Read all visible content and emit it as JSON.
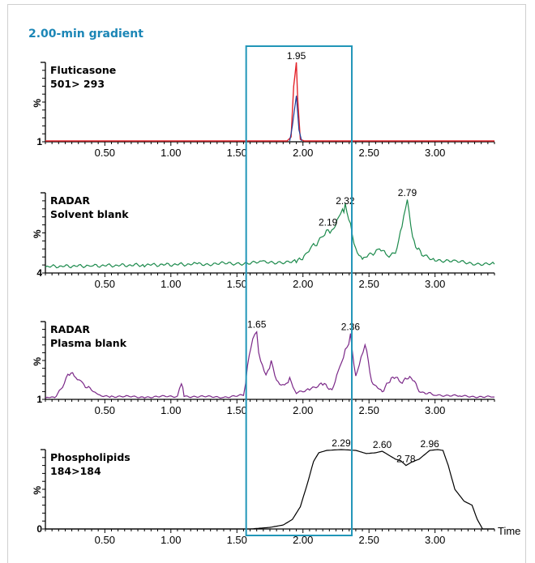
{
  "figure_title": "2.00-min gradient",
  "x_axis_label": "Time",
  "highlight_window": [
    1.57,
    2.37
  ],
  "highlight_color": "#2196b8",
  "chart_data": [
    {
      "type": "line",
      "label_lines": [
        "Fluticasone",
        "501> 293"
      ],
      "y_axis_label": "%",
      "y_min_label": "1",
      "xlim": [
        0.05,
        3.45
      ],
      "ylim": [
        0,
        100
      ],
      "x_ticks": [
        "0.50",
        "1.00",
        "1.50",
        "2.00",
        "2.50",
        "3.00"
      ],
      "colors": [
        "#e3242b",
        "#1f3f9a"
      ],
      "peaks": [
        {
          "x": 1.95,
          "label": "1.95"
        }
      ],
      "series": [
        {
          "color": "#e3242b",
          "points": [
            [
              0.05,
              1
            ],
            [
              1.88,
              1
            ],
            [
              1.91,
              6
            ],
            [
              1.93,
              70
            ],
            [
              1.95,
              100
            ],
            [
              1.96,
              55
            ],
            [
              1.98,
              3
            ],
            [
              2.01,
              1
            ],
            [
              3.45,
              1
            ]
          ]
        },
        {
          "color": "#1f3f9a",
          "points": [
            [
              1.9,
              1
            ],
            [
              1.92,
              20
            ],
            [
              1.95,
              58
            ],
            [
              1.97,
              15
            ],
            [
              1.99,
              1
            ]
          ]
        }
      ]
    },
    {
      "type": "line",
      "label_lines": [
        "RADAR",
        "Solvent blank"
      ],
      "y_axis_label": "%",
      "y_min_label": "4",
      "xlim": [
        0.05,
        3.45
      ],
      "ylim": [
        0,
        100
      ],
      "x_ticks": [
        "0.50",
        "1.00",
        "1.50",
        "2.00",
        "2.50",
        "3.00"
      ],
      "colors": [
        "#1c8a4c"
      ],
      "peaks": [
        {
          "x": 2.19,
          "label": "2.19"
        },
        {
          "x": 2.32,
          "label": "2.32"
        },
        {
          "x": 2.79,
          "label": "2.79"
        }
      ],
      "series": [
        {
          "color": "#1c8a4c",
          "points": [
            [
              0.05,
              8
            ],
            [
              0.4,
              9
            ],
            [
              0.8,
              10
            ],
            [
              1.2,
              11
            ],
            [
              1.5,
              12
            ],
            [
              1.7,
              13
            ],
            [
              1.85,
              14
            ],
            [
              1.95,
              14
            ],
            [
              2.02,
              22
            ],
            [
              2.08,
              35
            ],
            [
              2.14,
              42
            ],
            [
              2.19,
              55
            ],
            [
              2.22,
              50
            ],
            [
              2.27,
              70
            ],
            [
              2.3,
              78
            ],
            [
              2.32,
              82
            ],
            [
              2.36,
              62
            ],
            [
              2.4,
              30
            ],
            [
              2.45,
              18
            ],
            [
              2.52,
              24
            ],
            [
              2.58,
              30
            ],
            [
              2.64,
              22
            ],
            [
              2.7,
              25
            ],
            [
              2.75,
              55
            ],
            [
              2.79,
              92
            ],
            [
              2.83,
              42
            ],
            [
              2.9,
              22
            ],
            [
              3.0,
              17
            ],
            [
              3.15,
              14
            ],
            [
              3.3,
              12
            ],
            [
              3.45,
              11
            ]
          ]
        }
      ]
    },
    {
      "type": "line",
      "label_lines": [
        "RADAR",
        "Plasma blank"
      ],
      "y_axis_label": "%",
      "y_min_label": "1",
      "xlim": [
        0.05,
        3.45
      ],
      "ylim": [
        0,
        100
      ],
      "x_ticks": [
        "0.50",
        "1.00",
        "1.50",
        "2.00",
        "2.50",
        "3.00"
      ],
      "colors": [
        "#7b2888"
      ],
      "peaks": [
        {
          "x": 1.65,
          "label": "1.65"
        },
        {
          "x": 2.36,
          "label": "2.36"
        }
      ],
      "series": [
        {
          "color": "#7b2888",
          "points": [
            [
              0.05,
              2
            ],
            [
              0.12,
              3
            ],
            [
              0.18,
              15
            ],
            [
              0.22,
              35
            ],
            [
              0.28,
              28
            ],
            [
              0.33,
              20
            ],
            [
              0.4,
              12
            ],
            [
              0.45,
              5
            ],
            [
              0.55,
              4
            ],
            [
              0.8,
              3
            ],
            [
              1.05,
              4
            ],
            [
              1.08,
              22
            ],
            [
              1.1,
              4
            ],
            [
              1.4,
              3
            ],
            [
              1.55,
              5
            ],
            [
              1.58,
              40
            ],
            [
              1.62,
              75
            ],
            [
              1.65,
              88
            ],
            [
              1.68,
              45
            ],
            [
              1.72,
              30
            ],
            [
              1.76,
              48
            ],
            [
              1.8,
              22
            ],
            [
              1.86,
              18
            ],
            [
              1.9,
              25
            ],
            [
              1.95,
              8
            ],
            [
              2.05,
              14
            ],
            [
              2.15,
              20
            ],
            [
              2.22,
              12
            ],
            [
              2.28,
              40
            ],
            [
              2.32,
              62
            ],
            [
              2.36,
              85
            ],
            [
              2.4,
              28
            ],
            [
              2.44,
              55
            ],
            [
              2.47,
              70
            ],
            [
              2.52,
              22
            ],
            [
              2.6,
              10
            ],
            [
              2.68,
              30
            ],
            [
              2.74,
              22
            ],
            [
              2.82,
              30
            ],
            [
              2.88,
              10
            ],
            [
              3.0,
              6
            ],
            [
              3.2,
              4
            ],
            [
              3.45,
              3
            ]
          ]
        }
      ]
    },
    {
      "type": "line",
      "label_lines": [
        "Phospholipids",
        "184>184"
      ],
      "y_axis_label": "%",
      "y_min_label": "0",
      "xlim": [
        0.05,
        3.45
      ],
      "ylim": [
        0,
        100
      ],
      "x_ticks": [
        "0.50",
        "1.00",
        "1.50",
        "2.00",
        "2.50",
        "3.00"
      ],
      "colors": [
        "#000000"
      ],
      "peaks": [
        {
          "x": 2.29,
          "label": "2.29"
        },
        {
          "x": 2.6,
          "label": "2.60"
        },
        {
          "x": 2.78,
          "label": "2.78"
        },
        {
          "x": 2.96,
          "label": "2.96"
        }
      ],
      "series": [
        {
          "color": "#000000",
          "points": [
            [
              0.05,
              0
            ],
            [
              1.6,
              0
            ],
            [
              1.75,
              2
            ],
            [
              1.85,
              5
            ],
            [
              1.92,
              12
            ],
            [
              1.98,
              28
            ],
            [
              2.03,
              55
            ],
            [
              2.08,
              85
            ],
            [
              2.12,
              96
            ],
            [
              2.18,
              99
            ],
            [
              2.29,
              100
            ],
            [
              2.4,
              99
            ],
            [
              2.48,
              95
            ],
            [
              2.55,
              96
            ],
            [
              2.6,
              98
            ],
            [
              2.65,
              93
            ],
            [
              2.7,
              88
            ],
            [
              2.74,
              86
            ],
            [
              2.78,
              80
            ],
            [
              2.82,
              84
            ],
            [
              2.88,
              88
            ],
            [
              2.96,
              99
            ],
            [
              3.02,
              100
            ],
            [
              3.06,
              99
            ],
            [
              3.1,
              80
            ],
            [
              3.15,
              50
            ],
            [
              3.22,
              35
            ],
            [
              3.28,
              30
            ],
            [
              3.32,
              12
            ],
            [
              3.36,
              0
            ],
            [
              3.45,
              0
            ]
          ]
        }
      ]
    }
  ]
}
